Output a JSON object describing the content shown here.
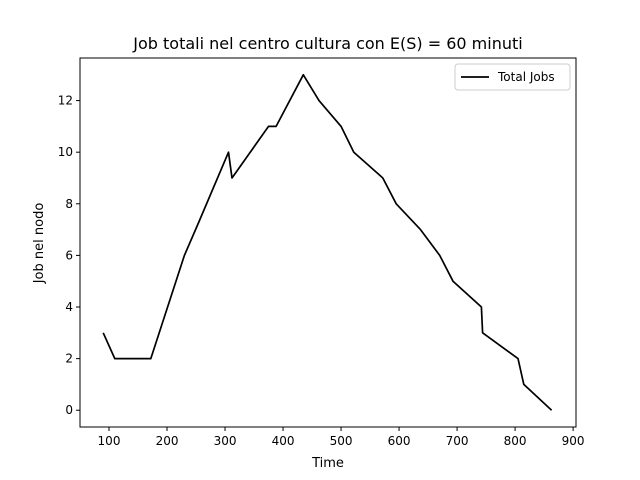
{
  "chart_data": {
    "type": "line",
    "title": "Job totali nel centro cultura con E(S) = 60 minuti",
    "xlabel": "Time",
    "ylabel": "Job nel nodo",
    "xlim": [
      50,
      905
    ],
    "ylim": [
      -0.65,
      13.65
    ],
    "xticks": [
      100,
      200,
      300,
      400,
      500,
      600,
      700,
      800,
      900
    ],
    "yticks": [
      0,
      2,
      4,
      6,
      8,
      10,
      12
    ],
    "grid": false,
    "legend": {
      "position": "top-right",
      "entries": [
        "Total Jobs"
      ]
    },
    "series": [
      {
        "name": "Total Jobs",
        "color": "#000000",
        "x": [
          90,
          110,
          172,
          230,
          255,
          306,
          312,
          375,
          388,
          435,
          462,
          500,
          522,
          572,
          595,
          637,
          670,
          693,
          742,
          744,
          805,
          815,
          863
        ],
        "y": [
          3,
          2,
          2,
          6,
          7.3,
          10,
          9,
          11,
          11,
          13,
          12,
          11,
          10,
          9,
          8,
          7,
          6,
          5,
          4,
          3,
          2,
          1,
          0
        ]
      }
    ]
  }
}
